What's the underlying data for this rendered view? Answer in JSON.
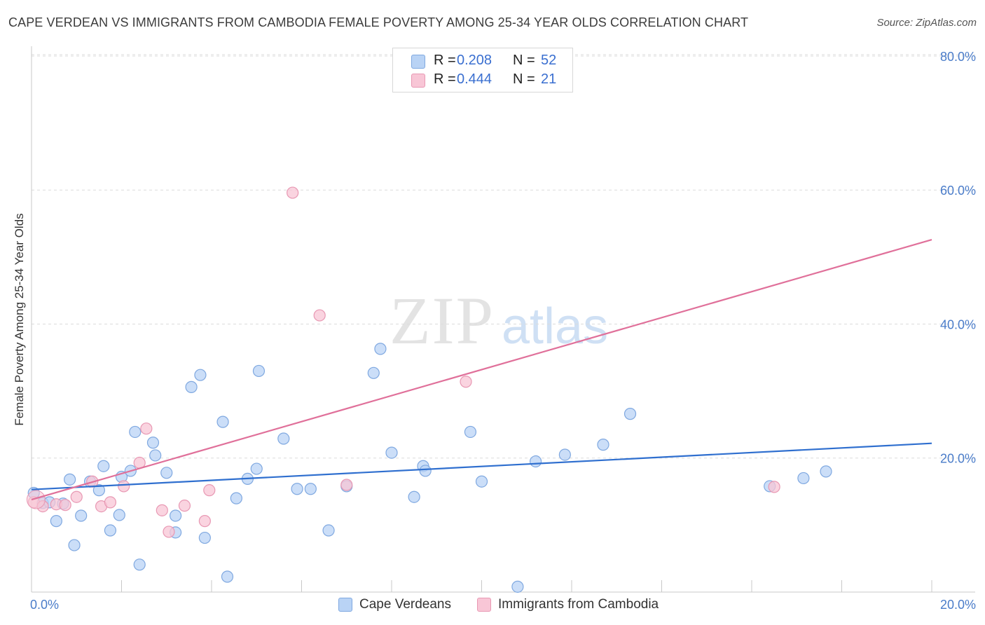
{
  "title": "CAPE VERDEAN VS IMMIGRANTS FROM CAMBODIA FEMALE POVERTY AMONG 25-34 YEAR OLDS CORRELATION CHART",
  "source": "Source: ZipAtlas.com",
  "watermark": {
    "zip": "ZIP",
    "atlas": "atlas"
  },
  "colors": {
    "blue_fill": "#b9d3f5",
    "blue_stroke": "#7fa8e0",
    "blue_line": "#2f6fcf",
    "pink_fill": "#f8c6d6",
    "pink_stroke": "#e898b3",
    "pink_line": "#e0709a",
    "axis_text": "#4a7cc9",
    "grid": "#dcdcdc"
  },
  "legend": {
    "series1": {
      "r_label": "R =",
      "r_value": "0.208",
      "n_label": "N =",
      "n_value": "52"
    },
    "series2": {
      "r_label": "R =",
      "r_value": "0.444",
      "n_label": "N =",
      "n_value": "21"
    }
  },
  "bottom_legend": {
    "series1": "Cape Verdeans",
    "series2": "Immigrants from Cambodia"
  },
  "chart_data": {
    "type": "scatter",
    "title": "CAPE VERDEAN VS IMMIGRANTS FROM CAMBODIA FEMALE POVERTY AMONG 25-34 YEAR OLDS CORRELATION CHART",
    "xlabel": "",
    "ylabel": "Female Poverty Among 25-34 Year Olds",
    "xlim": [
      0,
      20
    ],
    "ylim": [
      0,
      80
    ],
    "x_tick_labels": [
      "0.0%",
      "20.0%"
    ],
    "y_ticks": [
      20,
      40,
      60,
      80
    ],
    "y_tick_labels": [
      "20.0%",
      "40.0%",
      "60.0%",
      "80.0%"
    ],
    "grid": true,
    "series": [
      {
        "name": "Cape Verdeans",
        "points": [
          [
            0.05,
            14.8
          ],
          [
            0.25,
            13.3
          ],
          [
            0.4,
            13.4
          ],
          [
            0.55,
            10.6
          ],
          [
            0.7,
            13.2
          ],
          [
            0.85,
            16.8
          ],
          [
            0.95,
            7.0
          ],
          [
            1.1,
            11.4
          ],
          [
            1.3,
            16.5
          ],
          [
            1.5,
            15.2
          ],
          [
            1.6,
            18.8
          ],
          [
            1.75,
            9.2
          ],
          [
            1.95,
            11.5
          ],
          [
            2.0,
            17.2
          ],
          [
            2.2,
            18.1
          ],
          [
            2.3,
            23.9
          ],
          [
            2.4,
            4.1
          ],
          [
            2.7,
            22.3
          ],
          [
            2.75,
            20.4
          ],
          [
            3.0,
            17.8
          ],
          [
            3.2,
            11.4
          ],
          [
            3.2,
            8.9
          ],
          [
            3.55,
            30.6
          ],
          [
            3.75,
            32.4
          ],
          [
            3.85,
            8.1
          ],
          [
            4.25,
            25.4
          ],
          [
            4.35,
            2.3
          ],
          [
            4.55,
            14.0
          ],
          [
            4.8,
            16.9
          ],
          [
            5.0,
            18.4
          ],
          [
            5.05,
            33.0
          ],
          [
            5.6,
            22.9
          ],
          [
            5.9,
            15.4
          ],
          [
            6.2,
            15.4
          ],
          [
            6.6,
            9.2
          ],
          [
            7.0,
            15.8
          ],
          [
            7.6,
            32.7
          ],
          [
            7.75,
            36.3
          ],
          [
            8.0,
            20.8
          ],
          [
            8.5,
            14.2
          ],
          [
            8.7,
            18.8
          ],
          [
            8.75,
            18.1
          ],
          [
            9.75,
            23.9
          ],
          [
            10.0,
            16.5
          ],
          [
            10.8,
            0.8
          ],
          [
            11.2,
            19.5
          ],
          [
            11.85,
            20.5
          ],
          [
            12.7,
            22.0
          ],
          [
            13.3,
            26.6
          ],
          [
            16.4,
            15.8
          ],
          [
            17.15,
            17.0
          ],
          [
            17.65,
            18.0
          ]
        ]
      },
      {
        "name": "Immigrants from Cambodia",
        "points": [
          [
            0.05,
            13.4
          ],
          [
            0.25,
            12.8
          ],
          [
            0.55,
            13.1
          ],
          [
            0.75,
            13.0
          ],
          [
            1.0,
            14.2
          ],
          [
            1.35,
            16.5
          ],
          [
            1.55,
            12.8
          ],
          [
            1.75,
            13.4
          ],
          [
            2.05,
            15.8
          ],
          [
            2.4,
            19.3
          ],
          [
            2.55,
            24.4
          ],
          [
            2.9,
            12.2
          ],
          [
            3.05,
            9.0
          ],
          [
            3.4,
            12.9
          ],
          [
            3.85,
            10.6
          ],
          [
            3.95,
            15.2
          ],
          [
            5.8,
            59.6
          ],
          [
            6.4,
            41.3
          ],
          [
            7.0,
            16.0
          ],
          [
            9.65,
            31.4
          ],
          [
            16.5,
            15.7
          ]
        ]
      }
    ],
    "trendlines": [
      {
        "series": "Cape Verdeans",
        "x": [
          0,
          20
        ],
        "y": [
          15.3,
          22.2
        ]
      },
      {
        "series": "Immigrants from Cambodia",
        "x": [
          0,
          20
        ],
        "y": [
          13.8,
          52.6
        ]
      }
    ]
  }
}
